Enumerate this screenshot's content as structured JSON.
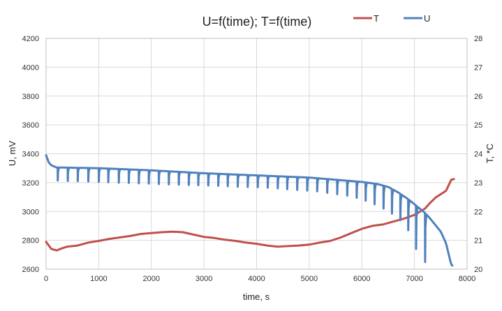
{
  "chart_data": {
    "type": "line",
    "title": "U=f(time);  T=f(time)",
    "xlabel": "time, s",
    "ylabel_left": "U, mV",
    "ylabel_right": "T, *C",
    "xlim": [
      0,
      8000
    ],
    "ylim_left": [
      2600,
      4200
    ],
    "ylim_right": [
      20,
      28
    ],
    "x_ticks": [
      0,
      1000,
      2000,
      3000,
      4000,
      5000,
      6000,
      7000,
      8000
    ],
    "y_left_ticks": [
      2600,
      2800,
      3000,
      3200,
      3400,
      3600,
      3800,
      4000,
      4200
    ],
    "y_right_ticks": [
      20,
      21,
      22,
      23,
      24,
      25,
      26,
      27,
      28
    ],
    "grid": true,
    "legend": {
      "position": "top-right",
      "entries": [
        "T",
        "U"
      ]
    },
    "colors": {
      "T": "#c0504d",
      "U": "#4f81bd"
    },
    "series": [
      {
        "name": "T",
        "axis": "right",
        "points": [
          [
            0,
            20.95
          ],
          [
            100,
            20.7
          ],
          [
            200,
            20.65
          ],
          [
            300,
            20.72
          ],
          [
            400,
            20.78
          ],
          [
            600,
            20.82
          ],
          [
            800,
            20.92
          ],
          [
            1000,
            20.98
          ],
          [
            1200,
            21.05
          ],
          [
            1400,
            21.1
          ],
          [
            1600,
            21.15
          ],
          [
            1800,
            21.22
          ],
          [
            2000,
            21.25
          ],
          [
            2200,
            21.28
          ],
          [
            2400,
            21.3
          ],
          [
            2600,
            21.28
          ],
          [
            2800,
            21.2
          ],
          [
            3000,
            21.12
          ],
          [
            3200,
            21.08
          ],
          [
            3400,
            21.02
          ],
          [
            3600,
            20.98
          ],
          [
            3800,
            20.92
          ],
          [
            4000,
            20.88
          ],
          [
            4200,
            20.82
          ],
          [
            4400,
            20.78
          ],
          [
            4600,
            20.8
          ],
          [
            4800,
            20.82
          ],
          [
            5000,
            20.85
          ],
          [
            5200,
            20.92
          ],
          [
            5400,
            20.98
          ],
          [
            5600,
            21.1
          ],
          [
            5800,
            21.25
          ],
          [
            6000,
            21.4
          ],
          [
            6200,
            21.5
          ],
          [
            6400,
            21.55
          ],
          [
            6600,
            21.65
          ],
          [
            6800,
            21.75
          ],
          [
            7000,
            21.88
          ],
          [
            7200,
            22.1
          ],
          [
            7300,
            22.3
          ],
          [
            7400,
            22.48
          ],
          [
            7600,
            22.72
          ],
          [
            7700,
            23.1
          ],
          [
            7750,
            23.12
          ]
        ]
      },
      {
        "name": "U",
        "axis": "left",
        "baseline": [
          [
            0,
            3390
          ],
          [
            50,
            3340
          ],
          [
            100,
            3320
          ],
          [
            200,
            3305
          ],
          [
            1000,
            3300
          ],
          [
            2000,
            3285
          ],
          [
            3000,
            3265
          ],
          [
            4000,
            3250
          ],
          [
            5000,
            3235
          ],
          [
            5500,
            3220
          ],
          [
            6000,
            3205
          ],
          [
            6300,
            3190
          ],
          [
            6500,
            3170
          ],
          [
            6700,
            3130
          ],
          [
            6900,
            3080
          ],
          [
            7000,
            3050
          ],
          [
            7100,
            3020
          ],
          [
            7200,
            2990
          ],
          [
            7300,
            2950
          ],
          [
            7500,
            2860
          ],
          [
            7600,
            2780
          ],
          [
            7700,
            2630
          ],
          [
            7720,
            2625
          ]
        ],
        "pulse_times": [
          220,
          410,
          600,
          800,
          1000,
          1180,
          1380,
          1570,
          1760,
          1950,
          2140,
          2330,
          2520,
          2710,
          2890,
          3080,
          3270,
          3450,
          3640,
          3830,
          4020,
          4210,
          4400,
          4580,
          4770,
          4960,
          5150,
          5340,
          5530,
          5720,
          5900,
          6070,
          6240,
          6410,
          6570,
          6730,
          6880,
          7030,
          7200
        ],
        "pulse_minimums": [
          3215,
          3212,
          3210,
          3208,
          3205,
          3203,
          3200,
          3198,
          3195,
          3193,
          3190,
          3188,
          3186,
          3184,
          3182,
          3180,
          3178,
          3175,
          3172,
          3170,
          3168,
          3165,
          3160,
          3155,
          3150,
          3145,
          3140,
          3130,
          3120,
          3110,
          3095,
          3075,
          3050,
          3020,
          2985,
          2940,
          2870,
          2740,
          2650
        ]
      }
    ]
  }
}
